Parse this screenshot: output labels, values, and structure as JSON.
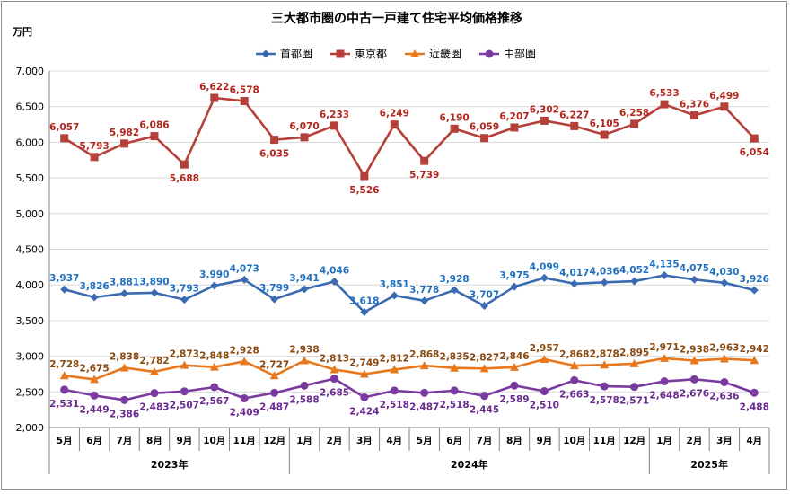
{
  "chart_data": {
    "type": "line",
    "title": "三大都市圏の中古一戸建て住宅平均価格推移",
    "unit_label": "万円",
    "categories": [
      "5月",
      "6月",
      "7月",
      "8月",
      "9月",
      "10月",
      "11月",
      "12月",
      "1月",
      "2月",
      "3月",
      "4月",
      "5月",
      "6月",
      "7月",
      "8月",
      "9月",
      "10月",
      "11月",
      "12月",
      "1月",
      "2月",
      "3月",
      "4月"
    ],
    "year_groups": [
      {
        "label": "2023年",
        "start": 0,
        "end": 7
      },
      {
        "label": "2024年",
        "start": 8,
        "end": 19
      },
      {
        "label": "2025年",
        "start": 20,
        "end": 23
      }
    ],
    "ylim": [
      2000,
      7000
    ],
    "yticks": [
      2000,
      2500,
      3000,
      3500,
      4000,
      4500,
      5000,
      5500,
      6000,
      6500,
      7000
    ],
    "ytick_labels": [
      "2,000",
      "2,500",
      "3,000",
      "3,500",
      "4,000",
      "4,500",
      "5,000",
      "5,500",
      "6,000",
      "6,500",
      "7,000"
    ],
    "grid": true,
    "legend_position": "top",
    "series": [
      {
        "name": "首都圏",
        "color": "#3a6bb0",
        "label_color": "#1f6fbf",
        "marker": "diamond",
        "values": [
          3937,
          3826,
          3881,
          3890,
          3793,
          3990,
          4073,
          3799,
          3941,
          4046,
          3618,
          3851,
          3778,
          3928,
          3707,
          3975,
          4099,
          4017,
          4036,
          4052,
          4135,
          4075,
          4030,
          3926
        ],
        "labels": [
          "3,937",
          "3,826",
          "3,881",
          "3,890",
          "3,793",
          "3,990",
          "4,073",
          "3,799",
          "3,941",
          "4,046",
          "3,618",
          "3,851",
          "3,778",
          "3,928",
          "3,707",
          "3,975",
          "4,099",
          "4,017",
          "4,036",
          "4,052",
          "4,135",
          "4,075",
          "4,030",
          "3,926"
        ],
        "label_pos": [
          "a",
          "a",
          "a",
          "a",
          "a",
          "a",
          "a",
          "a",
          "a",
          "a",
          "a",
          "a",
          "a",
          "a",
          "a",
          "a",
          "a",
          "a",
          "a",
          "a",
          "a",
          "a",
          "a",
          "a"
        ]
      },
      {
        "name": "東京都",
        "color": "#b5403a",
        "label_color": "#b3261e",
        "marker": "square",
        "values": [
          6057,
          5793,
          5982,
          6086,
          5688,
          6622,
          6578,
          6035,
          6070,
          6233,
          5526,
          6249,
          5739,
          6190,
          6059,
          6207,
          6302,
          6227,
          6105,
          6258,
          6533,
          6376,
          6499,
          6054
        ],
        "labels": [
          "6,057",
          "5,793",
          "5,982",
          "6,086",
          "5,688",
          "6,622",
          "6,578",
          "6,035",
          "6,070",
          "6,233",
          "5,526",
          "6,249",
          "5,739",
          "6,190",
          "6,059",
          "6,207",
          "6,302",
          "6,227",
          "6,105",
          "6,258",
          "6,533",
          "6,376",
          "6,499",
          "6,054"
        ],
        "label_pos": [
          "a",
          "a",
          "a",
          "a",
          "b",
          "a",
          "a",
          "b",
          "a",
          "a",
          "b",
          "a",
          "b",
          "a",
          "a",
          "a",
          "a",
          "a",
          "a",
          "a",
          "a",
          "a",
          "a",
          "b"
        ]
      },
      {
        "name": "近畿圏",
        "color": "#e8781e",
        "label_color": "#8a4a10",
        "marker": "triangle",
        "values": [
          2728,
          2675,
          2838,
          2782,
          2873,
          2848,
          2928,
          2727,
          2938,
          2813,
          2749,
          2812,
          2868,
          2835,
          2827,
          2846,
          2957,
          2868,
          2878,
          2895,
          2971,
          2938,
          2963,
          2942
        ],
        "labels": [
          "2,728",
          "2,675",
          "2,838",
          "2,782",
          "2,873",
          "2,848",
          "2,928",
          "2,727",
          "2,938",
          "2,813",
          "2,749",
          "2,812",
          "2,868",
          "2,835",
          "2,827",
          "2,846",
          "2,957",
          "2,868",
          "2,878",
          "2,895",
          "2,971",
          "2,938",
          "2,963",
          "2,942"
        ],
        "label_pos": [
          "a",
          "a",
          "a",
          "a",
          "a",
          "a",
          "a",
          "a",
          "a",
          "a",
          "a",
          "a",
          "a",
          "a",
          "a",
          "a",
          "a",
          "a",
          "a",
          "a",
          "a",
          "a",
          "a",
          "a"
        ]
      },
      {
        "name": "中部圏",
        "color": "#7a3aa0",
        "label_color": "#6a2a90",
        "marker": "circle",
        "values": [
          2531,
          2449,
          2386,
          2483,
          2507,
          2567,
          2409,
          2487,
          2588,
          2685,
          2424,
          2518,
          2487,
          2518,
          2445,
          2589,
          2510,
          2663,
          2578,
          2571,
          2648,
          2676,
          2636,
          2488
        ],
        "labels": [
          "2,531",
          "2,449",
          "2,386",
          "2,483",
          "2,507",
          "2,567",
          "2,409",
          "2,487",
          "2,588",
          "2,685",
          "2,424",
          "2,518",
          "2,487",
          "2,518",
          "2,445",
          "2,589",
          "2,510",
          "2,663",
          "2,578",
          "2,571",
          "2,648",
          "2,676",
          "2,636",
          "2,488"
        ],
        "label_pos": [
          "b",
          "b",
          "b",
          "b",
          "b",
          "b",
          "b",
          "b",
          "b",
          "b",
          "b",
          "b",
          "b",
          "b",
          "b",
          "b",
          "b",
          "b",
          "b",
          "b",
          "b",
          "b",
          "b",
          "b"
        ]
      }
    ]
  }
}
